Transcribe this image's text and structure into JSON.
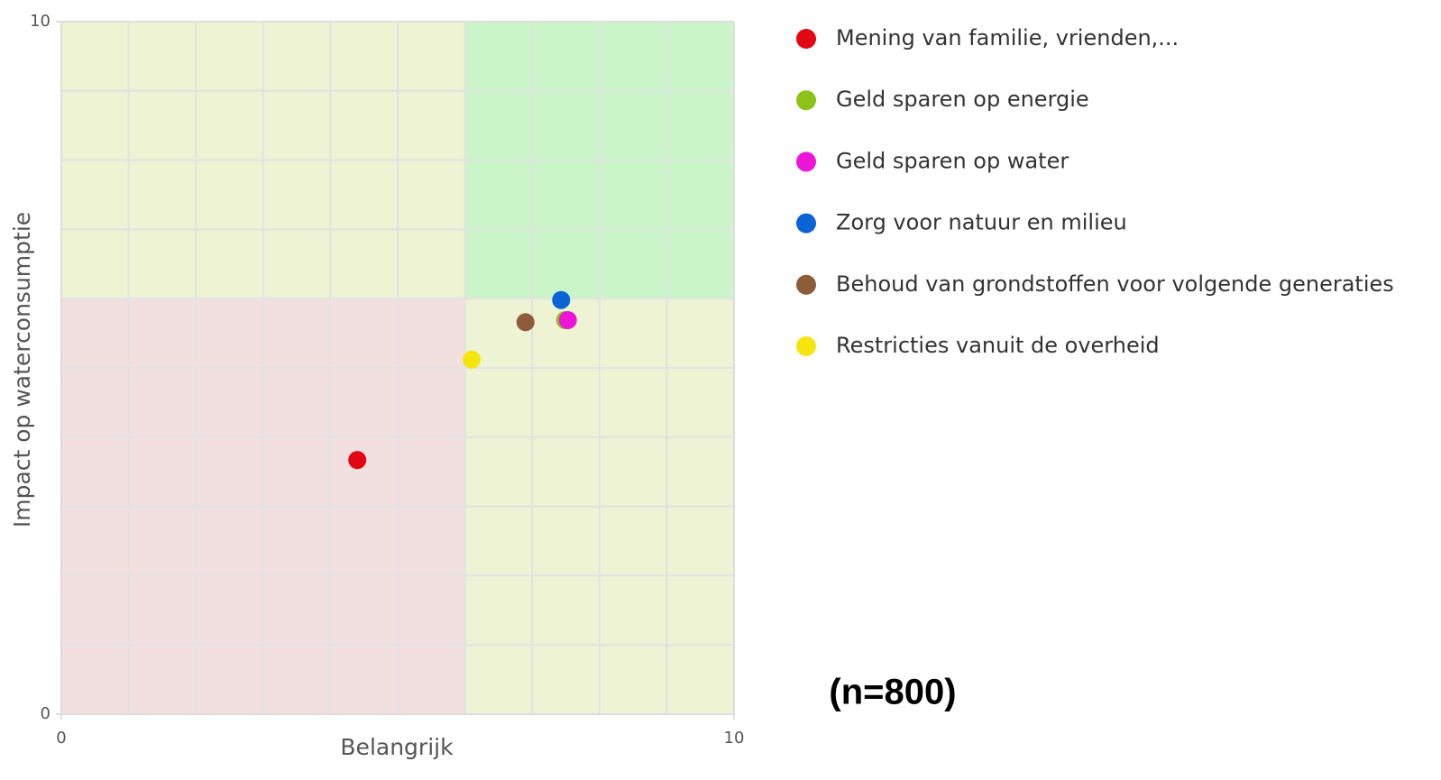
{
  "chart_data": {
    "type": "scatter",
    "x_label": "Belangrijk",
    "y_label": "Impact op waterconsumptie",
    "annotation": "(n=800)",
    "xlim": [
      0,
      10
    ],
    "ylim": [
      0,
      10
    ],
    "xticks": [
      0,
      10
    ],
    "yticks": [
      0,
      10
    ],
    "minor_xticks": [
      1,
      2,
      3,
      4,
      5,
      6,
      7,
      8,
      9
    ],
    "minor_yticks": [
      1,
      2,
      3,
      4,
      5,
      6,
      7,
      8,
      9
    ],
    "grid": true,
    "quadrants": [
      {
        "xlim": [
          0,
          6
        ],
        "ylim": [
          6,
          10
        ],
        "color": "#eef3d3"
      },
      {
        "xlim": [
          6,
          10
        ],
        "ylim": [
          6,
          10
        ],
        "color": "#c9f5c9"
      },
      {
        "xlim": [
          0,
          6
        ],
        "ylim": [
          0,
          6
        ],
        "color": "#f2e0e1"
      },
      {
        "xlim": [
          6,
          10
        ],
        "ylim": [
          0,
          6
        ],
        "color": "#eef3d3"
      }
    ],
    "legend": "right",
    "series": [
      {
        "name": "Mening van familie, vrienden,...",
        "color": "#e30613",
        "x": [
          4.4
        ],
        "values": [
          3.67
        ]
      },
      {
        "name": "Geld sparen op energie",
        "color": "#8cc21a",
        "x": [
          7.49
        ],
        "values": [
          5.69
        ]
      },
      {
        "name": "Geld sparen op water",
        "color": "#ec16d8",
        "x": [
          7.53
        ],
        "values": [
          5.69
        ]
      },
      {
        "name": "Zorg voor natuur en milieu",
        "color": "#0a64d6",
        "x": [
          7.43
        ],
        "values": [
          5.98
        ]
      },
      {
        "name": "Behoud van grondstoffen voor volgende generaties",
        "color": "#8e5c3a",
        "x": [
          6.9
        ],
        "values": [
          5.66
        ]
      },
      {
        "name": "Restricties vanuit de overheid",
        "color": "#f5e50f",
        "x": [
          6.1
        ],
        "values": [
          5.12
        ]
      }
    ]
  }
}
